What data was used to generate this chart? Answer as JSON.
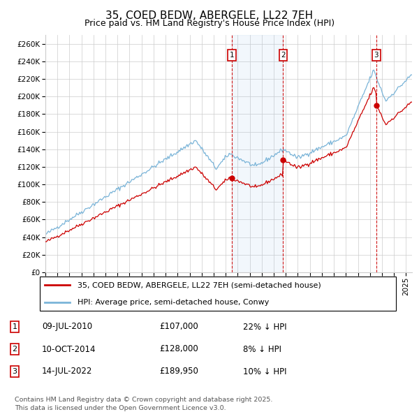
{
  "title": "35, COED BEDW, ABERGELE, LL22 7EH",
  "subtitle": "Price paid vs. HM Land Registry's House Price Index (HPI)",
  "ylim": [
    0,
    270000
  ],
  "yticks": [
    0,
    20000,
    40000,
    60000,
    80000,
    100000,
    120000,
    140000,
    160000,
    180000,
    200000,
    220000,
    240000,
    260000
  ],
  "hpi_color": "#7ab4d8",
  "price_color": "#cc0000",
  "vline_color": "#cc0000",
  "shade_color": "#ddeeff",
  "grid_color": "#cccccc",
  "xlim_start": 1995.0,
  "xlim_end": 2025.5,
  "sales": [
    {
      "date_num": 2010.52,
      "price": 107000,
      "label": "1"
    },
    {
      "date_num": 2014.78,
      "price": 128000,
      "label": "2"
    },
    {
      "date_num": 2022.53,
      "price": 189950,
      "label": "3"
    }
  ],
  "sale_annotations": [
    {
      "label": "1",
      "date": "09-JUL-2010",
      "price": "£107,000",
      "pct": "22% ↓ HPI"
    },
    {
      "label": "2",
      "date": "10-OCT-2014",
      "price": "£128,000",
      "pct": "8% ↓ HPI"
    },
    {
      "label": "3",
      "date": "14-JUL-2022",
      "price": "£189,950",
      "pct": "10% ↓ HPI"
    }
  ],
  "legend_line1": "35, COED BEDW, ABERGELE, LL22 7EH (semi-detached house)",
  "legend_line2": "HPI: Average price, semi-detached house, Conwy",
  "footer": "Contains HM Land Registry data © Crown copyright and database right 2025.\nThis data is licensed under the Open Government Licence v3.0.",
  "title_fontsize": 11,
  "subtitle_fontsize": 9,
  "tick_fontsize": 7.5,
  "legend_fontsize": 8,
  "annot_fontsize": 8.5
}
